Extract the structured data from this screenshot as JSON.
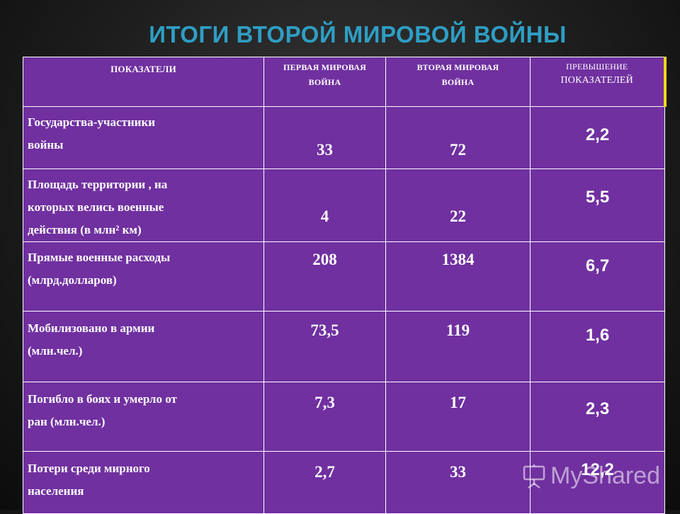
{
  "title": "ИТОГИ ВТОРОЙ МИРОВОЙ ВОЙНЫ",
  "table": {
    "headers": {
      "indicators": "ПОКАЗАТЕЛИ",
      "ww1_line1": "ПЕРВАЯ МИРОВАЯ",
      "ww1_line2": "ВОЙНА",
      "ww2_line1": "ВТОРАЯ МИРОВАЯ",
      "ww2_line2": "ВОЙНА",
      "excess_line1": "ПРЕВЫШЕНИЕ",
      "excess_line2": "ПОКАЗАТЕЛЕЙ"
    },
    "rows": [
      {
        "label_lines": [
          "Государства-участники",
          "войны"
        ],
        "ww1": "33",
        "ww2": "72",
        "ratio": "2,2"
      },
      {
        "label_lines": [
          "Площадь территории , на",
          "которых велись военные",
          "действия (в млн² км)"
        ],
        "ww1": "4",
        "ww2": "22",
        "ratio": "5,5"
      },
      {
        "label_lines": [
          "Прямые военные расходы",
          "(млрд.долларов)"
        ],
        "ww1": "208",
        "ww2": "1384",
        "ratio": "6,7"
      },
      {
        "label_lines": [
          "Мобилизовано в армии",
          "(млн.чел.)"
        ],
        "ww1": "73,5",
        "ww2": "119",
        "ratio": "1,6"
      },
      {
        "label_lines": [
          "Погибло в боях и умерло от",
          "ран (млн.чел.)"
        ],
        "ww1": "7,3",
        "ww2": "17",
        "ratio": "2,3"
      },
      {
        "label_lines": [
          "Потери среди мирного",
          "населения"
        ],
        "ww1": "2,7",
        "ww2": "33",
        "ratio": "12,2"
      }
    ]
  },
  "watermark": "MyShared",
  "colors": {
    "table_fill": "#7030a0",
    "title": "#2e9ec4",
    "accent_border": "#f2d51c"
  }
}
